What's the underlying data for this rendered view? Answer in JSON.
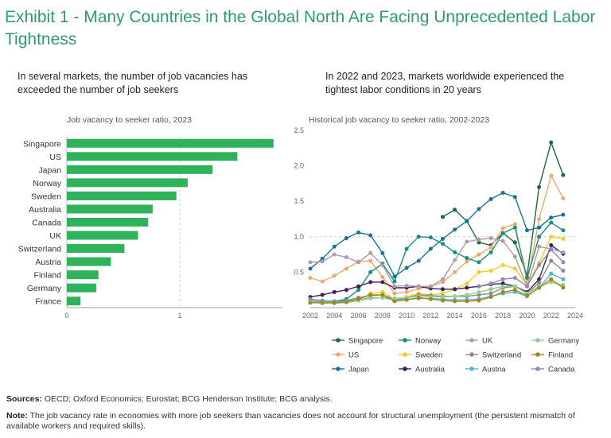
{
  "title": "Exhibit 1 - Many Countries in the Global North Are Facing Unprecedented Labor Tightness",
  "left_subtitle": "In several markets, the number of job vacancies has exceeded the number of job seekers",
  "right_subtitle": "In 2022 and 2023, markets worldwide experienced the tightest labor conditions in 20 years",
  "footer": {
    "sources_label": "Sources:",
    "sources_text": "OECD; Oxford Economics; Eurostat; BCG Henderson Institute; BCG analysis.",
    "note_label": "Note:",
    "note_text": "The job vacancy rate in economies with more job seekers than vacancies does not account for structural unemployment (the persistent mismatch of available workers and required skills)."
  },
  "chart_data": [
    {
      "type": "bar",
      "orientation": "horizontal",
      "title": "Job vacancy to seeker ratio, 2023",
      "categories": [
        "Singapore",
        "US",
        "Japan",
        "Norway",
        "Sweden",
        "Australia",
        "Canada",
        "UK",
        "Switzerland",
        "Austria",
        "Finland",
        "Germany",
        "France"
      ],
      "values": [
        1.83,
        1.51,
        1.29,
        1.07,
        0.97,
        0.76,
        0.72,
        0.63,
        0.51,
        0.39,
        0.28,
        0.26,
        0.12
      ],
      "xlim": [
        0,
        1.9
      ],
      "ticks": [
        "0",
        "1"
      ],
      "reference_line": 1,
      "color": "#2fb35a"
    },
    {
      "type": "line",
      "title": "Historical job vacancy to seeker ratio, 2002-2023",
      "ylim": [
        0,
        2.5
      ],
      "xlim": [
        2002,
        2024
      ],
      "y_ticks": [
        "0.5",
        "1.0",
        "1.5",
        "2.0",
        "2.5"
      ],
      "x_ticks": [
        "2002",
        "2004",
        "2006",
        "2008",
        "2010",
        "2012",
        "2014",
        "2016",
        "2018",
        "2020",
        "2022",
        "2024"
      ],
      "reference_line": 1,
      "series": [
        {
          "name": "Singapore",
          "color": "#1e6b3a",
          "x": [
            2013,
            2014,
            2015,
            2016,
            2017,
            2018,
            2019,
            2020,
            2021,
            2022,
            2023
          ],
          "values": [
            1.28,
            1.38,
            1.22,
            0.92,
            0.88,
            1.05,
            0.92,
            0.45,
            1.7,
            2.33,
            1.87
          ]
        },
        {
          "name": "US",
          "color": "#f3a86b",
          "x": [
            2002,
            2003,
            2004,
            2005,
            2006,
            2007,
            2008,
            2009,
            2010,
            2011,
            2012,
            2013,
            2014,
            2015,
            2016,
            2017,
            2018,
            2019,
            2020,
            2021,
            2022,
            2023
          ],
          "values": [
            0.42,
            0.37,
            0.45,
            0.55,
            0.65,
            0.66,
            0.43,
            0.2,
            0.22,
            0.27,
            0.3,
            0.36,
            0.5,
            0.65,
            0.75,
            0.85,
            1.12,
            1.18,
            0.35,
            1.25,
            1.86,
            1.54
          ]
        },
        {
          "name": "Japan",
          "color": "#17739b",
          "x": [
            2002,
            2003,
            2004,
            2005,
            2006,
            2007,
            2008,
            2009,
            2010,
            2011,
            2012,
            2013,
            2014,
            2015,
            2016,
            2017,
            2018,
            2019,
            2020,
            2021,
            2022,
            2023
          ],
          "values": [
            0.55,
            0.69,
            0.86,
            0.98,
            1.06,
            1.02,
            0.77,
            0.44,
            0.56,
            0.66,
            0.83,
            0.97,
            1.1,
            1.22,
            1.39,
            1.53,
            1.62,
            1.56,
            1.09,
            1.13,
            1.27,
            1.31
          ]
        },
        {
          "name": "Norway",
          "color": "#14917a",
          "x": [
            2002,
            2003,
            2004,
            2005,
            2006,
            2007,
            2008,
            2009,
            2010,
            2011,
            2012,
            2013,
            2014,
            2015,
            2016,
            2017,
            2018,
            2019,
            2020,
            2021,
            2022,
            2023
          ],
          "values": [
            0.07,
            0.08,
            0.09,
            0.12,
            0.25,
            0.5,
            0.62,
            0.37,
            0.83,
            1.0,
            0.99,
            0.9,
            0.78,
            0.7,
            0.64,
            0.78,
            1.05,
            1.13,
            0.42,
            1.0,
            1.2,
            1.09
          ]
        },
        {
          "name": "Sweden",
          "color": "#f5cd20",
          "x": [
            2002,
            2003,
            2004,
            2005,
            2006,
            2007,
            2008,
            2009,
            2010,
            2011,
            2012,
            2013,
            2014,
            2015,
            2016,
            2017,
            2018,
            2019,
            2020,
            2021,
            2022,
            2023
          ],
          "values": [
            0.1,
            0.08,
            0.07,
            0.09,
            0.12,
            0.2,
            0.22,
            0.12,
            0.15,
            0.2,
            0.18,
            0.2,
            0.26,
            0.34,
            0.5,
            0.52,
            0.6,
            0.55,
            0.32,
            0.63,
            1.0,
            0.97
          ]
        },
        {
          "name": "Australia",
          "color": "#3f1f5e",
          "x": [
            2002,
            2003,
            2004,
            2005,
            2006,
            2007,
            2008,
            2009,
            2010,
            2011,
            2012,
            2013,
            2014,
            2015,
            2016,
            2017,
            2018,
            2019,
            2020,
            2021,
            2022,
            2023
          ],
          "values": [
            0.15,
            0.18,
            0.22,
            0.25,
            0.3,
            0.36,
            0.36,
            0.28,
            0.28,
            0.3,
            0.27,
            0.26,
            0.26,
            0.28,
            0.3,
            0.33,
            0.34,
            0.3,
            0.22,
            0.4,
            0.88,
            0.76
          ]
        },
        {
          "name": "UK",
          "color": "#b39aa9",
          "x": [
            2002,
            2003,
            2004,
            2005,
            2006,
            2007,
            2008,
            2009,
            2010,
            2011,
            2012,
            2013,
            2014,
            2015,
            2016,
            2017,
            2018,
            2019,
            2020,
            2021,
            2022,
            2023
          ],
          "values": [
            0.64,
            0.65,
            0.75,
            0.71,
            0.64,
            0.77,
            0.6,
            0.3,
            0.31,
            0.3,
            0.3,
            0.4,
            0.67,
            0.93,
            0.96,
            0.98,
            0.94,
            0.72,
            0.3,
            0.86,
            0.83,
            0.78
          ]
        },
        {
          "name": "Switzerland",
          "color": "#8a8a8a",
          "x": [
            2002,
            2003,
            2004,
            2005,
            2006,
            2007,
            2008,
            2009,
            2010,
            2011,
            2012,
            2013,
            2014,
            2015,
            2016,
            2017,
            2018,
            2019,
            2020,
            2021,
            2022,
            2023
          ],
          "values": [
            0.12,
            0.1,
            0.09,
            0.1,
            0.14,
            0.17,
            0.18,
            0.12,
            0.14,
            0.18,
            0.17,
            0.16,
            0.16,
            0.16,
            0.18,
            0.2,
            0.28,
            0.3,
            0.2,
            0.35,
            0.66,
            0.52
          ]
        },
        {
          "name": "Austria",
          "color": "#4fb6dd",
          "x": [
            2002,
            2003,
            2004,
            2005,
            2006,
            2007,
            2008,
            2009,
            2010,
            2011,
            2012,
            2013,
            2014,
            2015,
            2016,
            2017,
            2018,
            2019,
            2020,
            2021,
            2022,
            2023
          ],
          "values": [
            0.09,
            0.09,
            0.08,
            0.09,
            0.11,
            0.14,
            0.14,
            0.11,
            0.12,
            0.13,
            0.13,
            0.12,
            0.11,
            0.11,
            0.12,
            0.16,
            0.2,
            0.22,
            0.16,
            0.28,
            0.48,
            0.4
          ]
        },
        {
          "name": "Germany",
          "color": "#93cf8e",
          "x": [
            2002,
            2003,
            2004,
            2005,
            2006,
            2007,
            2008,
            2009,
            2010,
            2011,
            2012,
            2013,
            2014,
            2015,
            2016,
            2017,
            2018,
            2019,
            2020,
            2021,
            2022,
            2023
          ],
          "values": [
            0.08,
            0.06,
            0.06,
            0.07,
            0.1,
            0.13,
            0.14,
            0.13,
            0.14,
            0.16,
            0.15,
            0.15,
            0.16,
            0.18,
            0.22,
            0.26,
            0.3,
            0.3,
            0.2,
            0.3,
            0.36,
            0.32
          ]
        },
        {
          "name": "Finland",
          "color": "#a58718",
          "x": [
            2002,
            2003,
            2004,
            2005,
            2006,
            2007,
            2008,
            2009,
            2010,
            2011,
            2012,
            2013,
            2014,
            2015,
            2016,
            2017,
            2018,
            2019,
            2020,
            2021,
            2022,
            2023
          ],
          "values": [
            0.07,
            0.07,
            0.07,
            0.08,
            0.12,
            0.18,
            0.18,
            0.09,
            0.11,
            0.14,
            0.12,
            0.1,
            0.09,
            0.09,
            0.1,
            0.15,
            0.22,
            0.25,
            0.17,
            0.28,
            0.4,
            0.28
          ]
        },
        {
          "name": "Canada",
          "color": "#8f86c2",
          "x": [
            2016,
            2017,
            2018,
            2019,
            2020,
            2021,
            2022,
            2023
          ],
          "values": [
            0.3,
            0.34,
            0.4,
            0.42,
            0.3,
            0.6,
            0.82,
            0.64
          ]
        }
      ],
      "legend_order": [
        "Singapore",
        "Norway",
        "UK",
        "Germany",
        "US",
        "Sweden",
        "Switzerland",
        "Finland",
        "Japan",
        "Australia",
        "Austria",
        "Canada"
      ]
    }
  ]
}
